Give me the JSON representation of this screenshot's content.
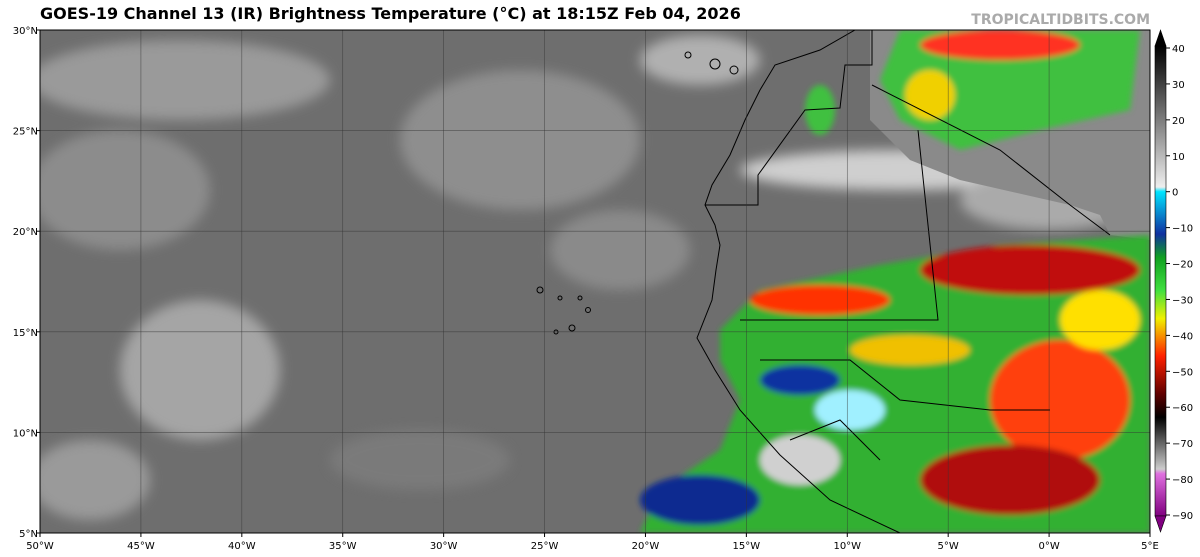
{
  "header": {
    "title": "GOES-19 Channel 13 (IR) Brightness Temperature (°C) at 18:15Z Feb 04, 2026",
    "watermark": "TROPICALTIDBITS.COM"
  },
  "map": {
    "lon_range": [
      -50,
      5
    ],
    "lat_range": [
      5,
      30
    ],
    "lon_ticks": [
      {
        "value": -50,
        "label": "50°W"
      },
      {
        "value": -45,
        "label": "45°W"
      },
      {
        "value": -40,
        "label": "40°W"
      },
      {
        "value": -35,
        "label": "35°W"
      },
      {
        "value": -30,
        "label": "30°W"
      },
      {
        "value": -25,
        "label": "25°W"
      },
      {
        "value": -20,
        "label": "20°W"
      },
      {
        "value": -15,
        "label": "15°W"
      },
      {
        "value": -10,
        "label": "10°W"
      },
      {
        "value": -5,
        "label": "5°W"
      },
      {
        "value": 0,
        "label": "0°W"
      },
      {
        "value": 5,
        "label": "5°E"
      }
    ],
    "lat_ticks": [
      {
        "value": 30,
        "label": "30°N"
      },
      {
        "value": 25,
        "label": "25°N"
      },
      {
        "value": 20,
        "label": "20°N"
      },
      {
        "value": 15,
        "label": "15°N"
      },
      {
        "value": 10,
        "label": "10°N"
      },
      {
        "value": 5,
        "label": "5°N"
      }
    ]
  },
  "colorbar": {
    "range": [
      -90,
      40
    ],
    "ticks": [
      40,
      30,
      20,
      10,
      0,
      {
        "value": -10,
        "label": "−10"
      },
      {
        "value": -20,
        "label": "−20"
      },
      {
        "value": -30,
        "label": "−30"
      },
      {
        "value": -40,
        "label": "−40"
      },
      {
        "value": -50,
        "label": "−50"
      },
      {
        "value": -60,
        "label": "−60"
      },
      {
        "value": -70,
        "label": "−70"
      },
      {
        "value": -80,
        "label": "−80"
      },
      {
        "value": -90,
        "label": "−90"
      }
    ]
  }
}
